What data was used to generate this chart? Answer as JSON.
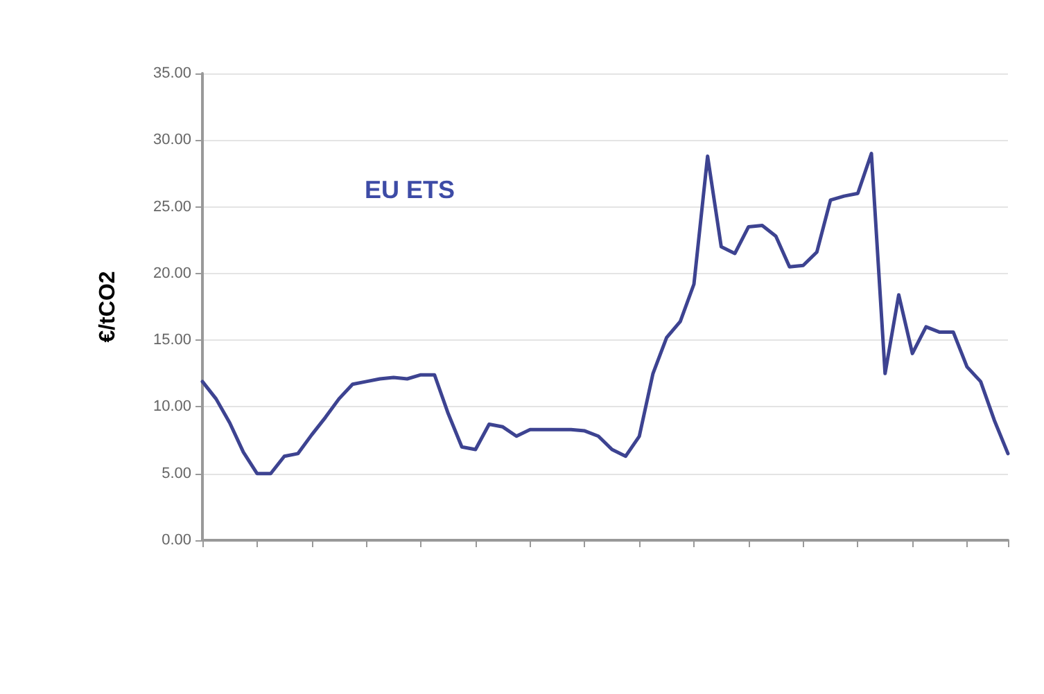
{
  "chart_data": {
    "type": "line",
    "title": "EU ETS",
    "ylabel": "€/tCO2",
    "categories": [
      null,
      null,
      null,
      null,
      null,
      null,
      null,
      null,
      null,
      null,
      null,
      null,
      null,
      null,
      null,
      null,
      null,
      null,
      null,
      null,
      null,
      null,
      null,
      null,
      null,
      null,
      null,
      null,
      null,
      null,
      null,
      null,
      null,
      null,
      null,
      null,
      null,
      null,
      null,
      null,
      null,
      null,
      null,
      null,
      null,
      null,
      null,
      null,
      null,
      null,
      null,
      null,
      null,
      null,
      null,
      null,
      null,
      null,
      null,
      null
    ],
    "series": [
      {
        "color": "#3d4391",
        "values": [
          11.9,
          10.6,
          8.8,
          6.6,
          5.0,
          5.0,
          6.3,
          6.5,
          7.9,
          9.2,
          10.6,
          11.7,
          11.9,
          12.1,
          12.2,
          12.1,
          12.4,
          12.4,
          9.5,
          7.0,
          6.8,
          8.7,
          8.5,
          7.8,
          8.3,
          8.3,
          8.3,
          8.3,
          8.2,
          7.8,
          6.8,
          6.3,
          7.8,
          12.5,
          15.2,
          16.4,
          19.2,
          28.8,
          22.0,
          21.5,
          23.5,
          23.6,
          22.8,
          20.5,
          20.6,
          21.6,
          25.5,
          25.8,
          26.0,
          29.0,
          12.5,
          18.4,
          14.0,
          16.0,
          15.6,
          15.6,
          13.0,
          11.9,
          9.0,
          6.5
        ]
      }
    ],
    "ylim": [
      0,
      35
    ],
    "yticks": [
      {
        "value": 0,
        "label": "0.00"
      },
      {
        "value": 5,
        "label": "5.00"
      },
      {
        "value": 10,
        "label": "10.00"
      },
      {
        "value": 15,
        "label": "15.00"
      },
      {
        "value": 20,
        "label": "20.00"
      },
      {
        "value": 25,
        "label": "25.00"
      },
      {
        "value": 30,
        "label": "30.00"
      },
      {
        "value": 35,
        "label": "35.00"
      }
    ],
    "grid": "y",
    "marker": "none",
    "line_style": "solid"
  }
}
